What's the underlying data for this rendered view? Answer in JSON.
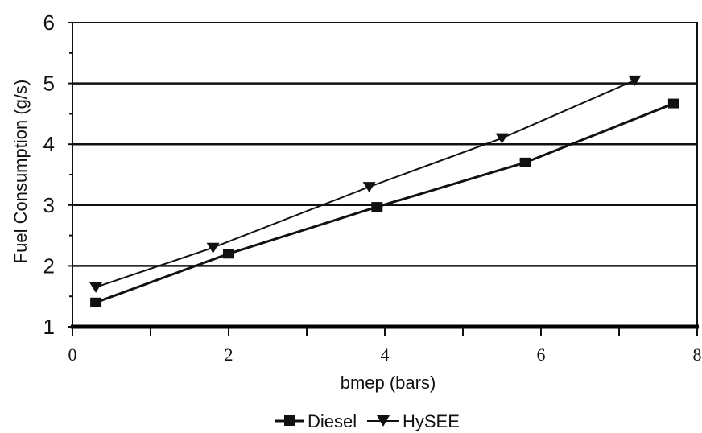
{
  "chart_data": {
    "type": "line",
    "xlabel": "bmep (bars)",
    "ylabel": "Fuel Consumption  (g/s)",
    "xlim": [
      0,
      8
    ],
    "ylim": [
      1,
      6
    ],
    "x_ticks": [
      "0",
      "2",
      "4",
      "6",
      "8"
    ],
    "y_ticks": [
      "1",
      "2",
      "3",
      "4",
      "5",
      "6"
    ],
    "grid": "horizontal",
    "legend": "bottom",
    "series": [
      {
        "name": "Diesel",
        "marker": "square",
        "x": [
          0.3,
          2.0,
          3.9,
          5.8,
          7.7
        ],
        "y": [
          1.4,
          2.2,
          2.97,
          3.7,
          4.67
        ]
      },
      {
        "name": "HySEE",
        "marker": "triangle-down",
        "x": [
          0.3,
          1.8,
          3.8,
          5.5,
          7.2
        ],
        "y": [
          1.65,
          2.3,
          3.3,
          4.1,
          5.05
        ]
      }
    ]
  }
}
